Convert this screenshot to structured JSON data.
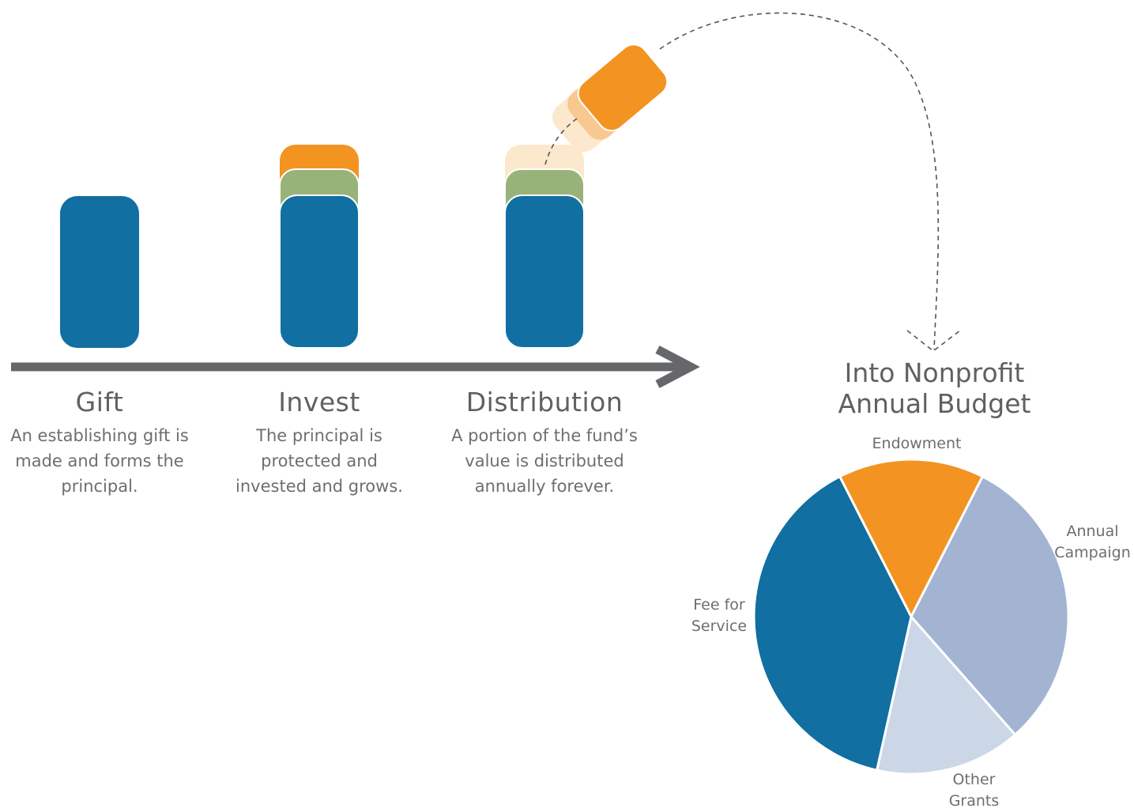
{
  "steps": [
    {
      "title": "Gift",
      "description": [
        "An establishing gift is",
        "made and forms the",
        "principal."
      ]
    },
    {
      "title": "Invest",
      "description": [
        "The principal is",
        "protected and",
        "invested and grows."
      ]
    },
    {
      "title": "Distribution",
      "description": [
        "A portion of the fund’s",
        "value is distributed",
        "annually forever."
      ]
    }
  ],
  "budget": {
    "title_line1": "Into Nonprofit",
    "title_line2": "Annual Budget",
    "slices": [
      {
        "label_line1": "Endowment",
        "label_line2": "",
        "share": 0.15,
        "color": "#f39322"
      },
      {
        "label_line1": "Annual",
        "label_line2": "Campaign",
        "share": 0.31,
        "color": "#a2b4d2"
      },
      {
        "label_line1": "Other",
        "label_line2": "Grants",
        "share": 0.15,
        "color": "#cbd6e6"
      },
      {
        "label_line1": "Fee for",
        "label_line2": "Service",
        "share": 0.39,
        "color": "#116fa1"
      }
    ]
  },
  "colors": {
    "principal": "#116fa1",
    "growth": "#98b37a",
    "distribution": "#f39322",
    "distribution_faded": "#fce8cc",
    "arrow": "#66676a",
    "dashed_path": "#555555"
  }
}
